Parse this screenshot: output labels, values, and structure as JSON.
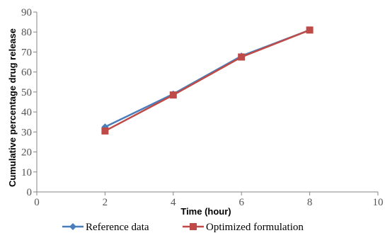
{
  "chart_data": {
    "type": "line",
    "xlabel": "Time (hour)",
    "ylabel": "Cumulative percentage drug release",
    "xlim": [
      0,
      10
    ],
    "ylim": [
      0,
      90
    ],
    "xticks": [
      0,
      2,
      4,
      6,
      8,
      10
    ],
    "yticks": [
      0,
      10,
      20,
      30,
      40,
      50,
      60,
      70,
      80,
      90
    ],
    "grid": false,
    "legend_position": "bottom",
    "series": [
      {
        "name": "Reference data",
        "color": "#4A7EBB",
        "marker": "diamond",
        "x": [
          2,
          4,
          6,
          8
        ],
        "y": [
          32.5,
          49,
          68,
          81
        ]
      },
      {
        "name": "Optimized formulation",
        "color": "#BE4B48",
        "marker": "square",
        "x": [
          2,
          4,
          6,
          8
        ],
        "y": [
          30.5,
          48.5,
          67.5,
          81
        ]
      }
    ]
  }
}
